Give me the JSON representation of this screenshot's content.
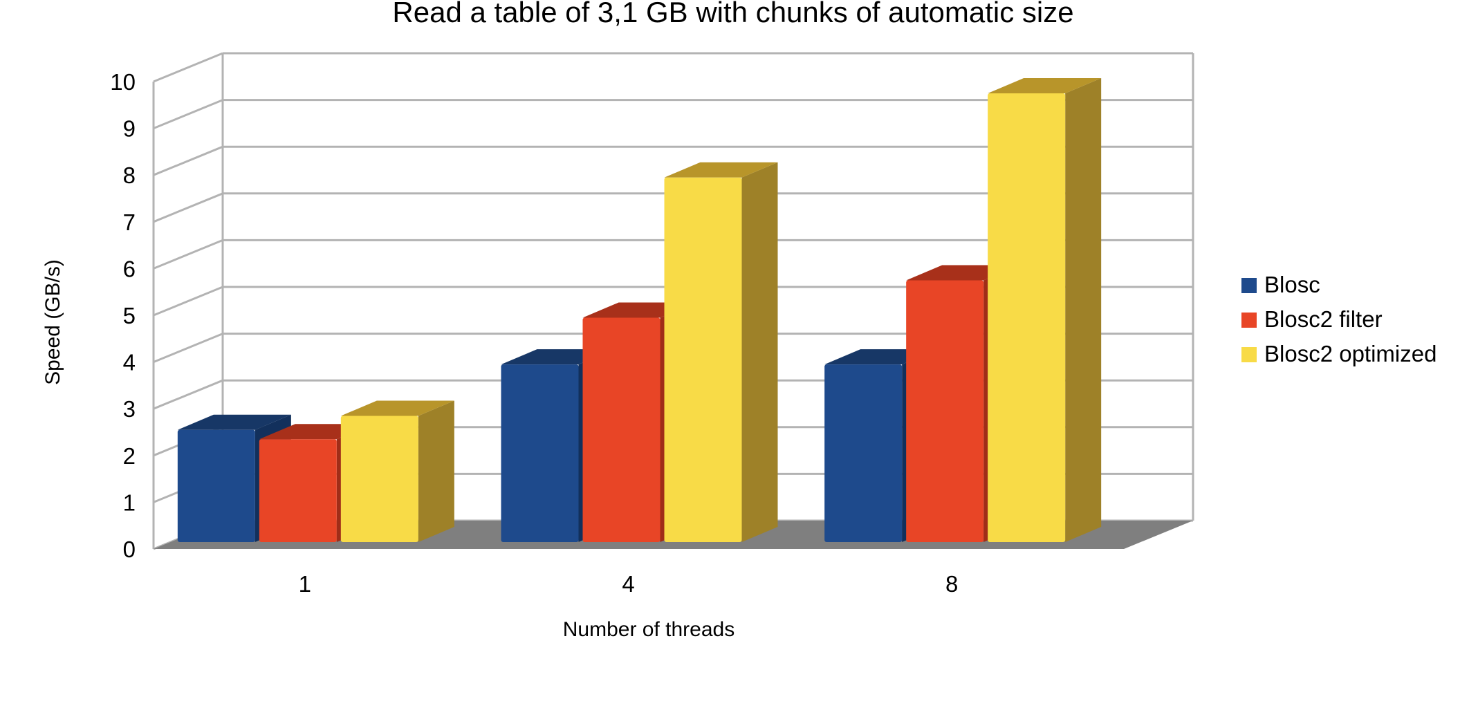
{
  "chart_data": {
    "type": "bar",
    "title": "Read a table of 3,1 GB with chunks of automatic size",
    "xlabel": "Number of threads",
    "ylabel": "Speed (GB/s)",
    "categories": [
      "1",
      "4",
      "8"
    ],
    "series": [
      {
        "name": "Blosc",
        "values": [
          2.4,
          3.8,
          3.8
        ],
        "color": "#1e4a8c",
        "top": "#173766",
        "side": "#12305c"
      },
      {
        "name": "Blosc2 filter",
        "values": [
          2.2,
          4.8,
          5.6
        ],
        "color": "#e84526",
        "top": "#a8301a",
        "side": "#a02d18"
      },
      {
        "name": "Blosc2 optimized",
        "values": [
          2.7,
          7.8,
          9.6
        ],
        "color": "#f8db47",
        "top": "#b8952a",
        "side": "#9e8128"
      }
    ],
    "ylim": [
      0,
      10
    ],
    "yticks": [
      "0",
      "1",
      "2",
      "3",
      "4",
      "5",
      "6",
      "7",
      "8",
      "9",
      "10"
    ],
    "grid": true,
    "legend": "right",
    "floor_color": "#7f7f7f",
    "grid_color": "#b3b3b3"
  }
}
